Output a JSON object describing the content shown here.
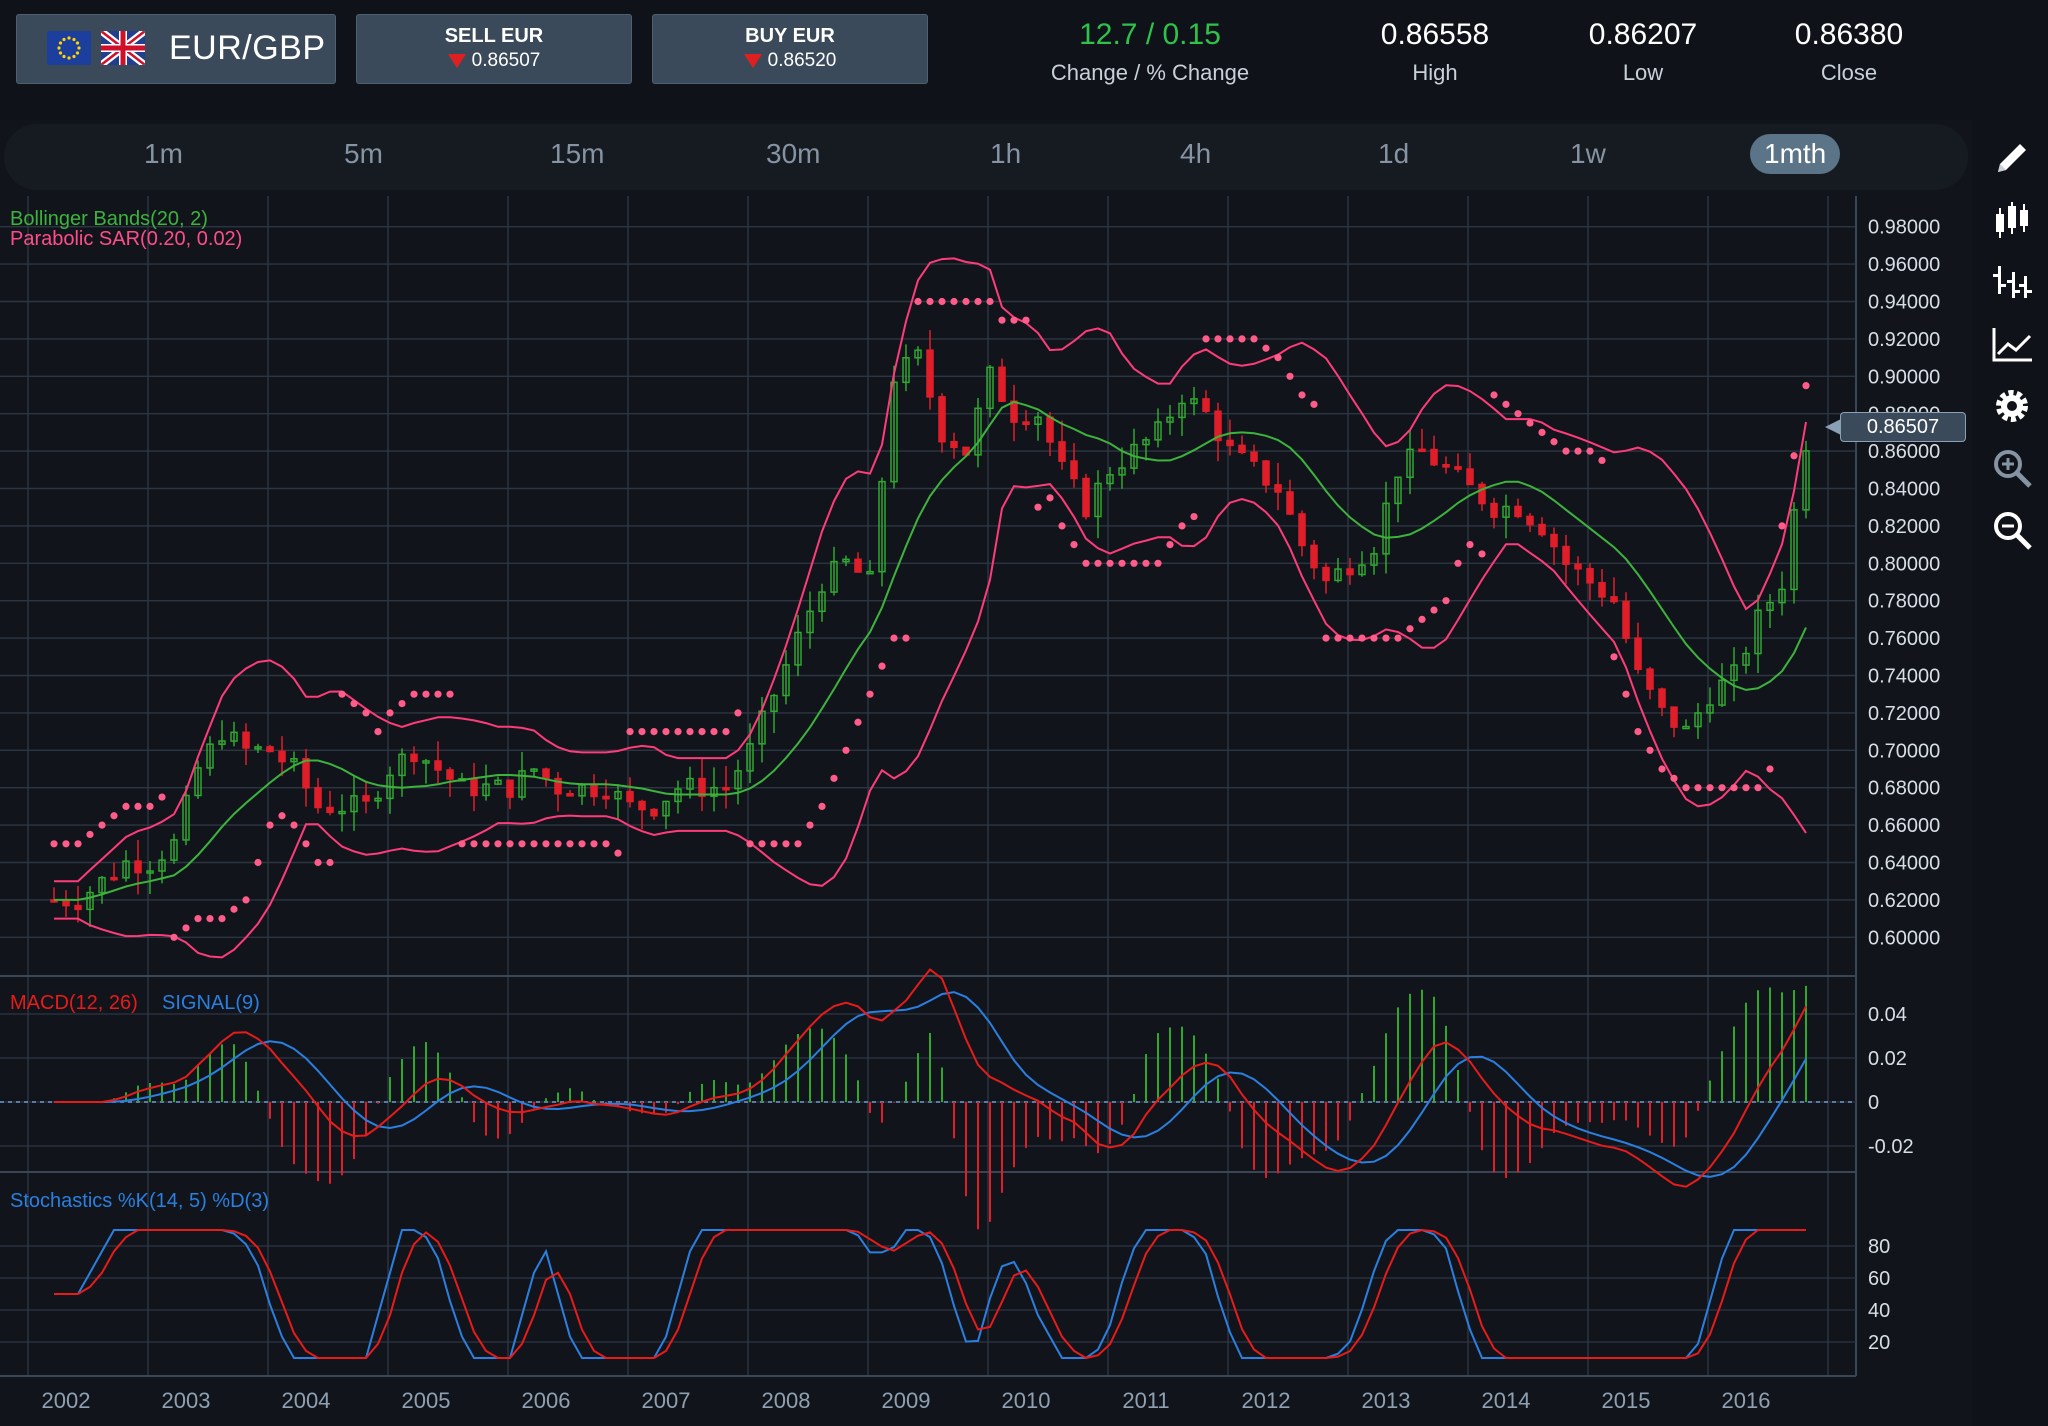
{
  "header": {
    "pair": "EUR/GBP",
    "sell": {
      "label": "SELL EUR",
      "price": "0.86507"
    },
    "buy": {
      "label": "BUY EUR",
      "price": "0.86520"
    },
    "change": {
      "value": "12.7 / 0.15",
      "label": "Change / % Change"
    },
    "high": {
      "value": "0.86558",
      "label": "High"
    },
    "low": {
      "value": "0.86207",
      "label": "Low"
    },
    "close": {
      "value": "0.86380",
      "label": "Close"
    }
  },
  "timeframes": [
    "1m",
    "5m",
    "15m",
    "30m",
    "1h",
    "4h",
    "1d",
    "1w",
    "1mth"
  ],
  "active_timeframe": "1mth",
  "tools": [
    "pencil-icon",
    "candlestick-icon",
    "bar-chart-icon",
    "line-chart-icon",
    "gear-icon",
    "zoom-in-icon",
    "zoom-out-icon"
  ],
  "colors": {
    "up": "#2fa82f",
    "down": "#e01e2a",
    "band": "#ff3b7a",
    "mid": "#3db33d",
    "sar": "#ff5c8a",
    "macd": "#e81b1b",
    "signal": "#2a7fe0",
    "bg": "#11151b",
    "grid": "#2c3643"
  },
  "current_price_tag": "0.86507",
  "chart_data": [
    {
      "type": "candlestick",
      "indicators": [
        "Bollinger Bands(20, 2)",
        "Parabolic SAR(0.20, 0.02)"
      ],
      "y_ticks": [
        "0.98000",
        "0.96000",
        "0.94000",
        "0.92000",
        "0.90000",
        "0.88000",
        "0.86000",
        "0.84000",
        "0.82000",
        "0.80000",
        "0.78000",
        "0.76000",
        "0.74000",
        "0.72000",
        "0.70000",
        "0.68000",
        "0.66000",
        "0.64000",
        "0.62000",
        "0.60000"
      ],
      "ylim": [
        0.59,
        0.99
      ],
      "x_ticks": [
        "2002",
        "2003",
        "2004",
        "2005",
        "2006",
        "2007",
        "2008",
        "2009",
        "2010",
        "2011",
        "2012",
        "2013",
        "2014",
        "2015",
        "2016"
      ],
      "close_series_approx": [
        [
          2001.9,
          0.62
        ],
        [
          2002.1,
          0.62
        ],
        [
          2002.3,
          0.63
        ],
        [
          2002.5,
          0.64
        ],
        [
          2002.7,
          0.64
        ],
        [
          2002.9,
          0.65
        ],
        [
          2003.1,
          0.69
        ],
        [
          2003.3,
          0.71
        ],
        [
          2003.5,
          0.7
        ],
        [
          2003.7,
          0.7
        ],
        [
          2003.9,
          0.69
        ],
        [
          2004.1,
          0.67
        ],
        [
          2004.3,
          0.67
        ],
        [
          2004.5,
          0.67
        ],
        [
          2004.7,
          0.69
        ],
        [
          2004.9,
          0.7
        ],
        [
          2005.1,
          0.69
        ],
        [
          2005.3,
          0.68
        ],
        [
          2005.5,
          0.68
        ],
        [
          2005.7,
          0.68
        ],
        [
          2005.9,
          0.69
        ],
        [
          2006.1,
          0.68
        ],
        [
          2006.3,
          0.68
        ],
        [
          2006.5,
          0.68
        ],
        [
          2006.7,
          0.67
        ],
        [
          2006.9,
          0.67
        ],
        [
          2007.1,
          0.68
        ],
        [
          2007.3,
          0.68
        ],
        [
          2007.5,
          0.68
        ],
        [
          2007.7,
          0.7
        ],
        [
          2007.9,
          0.73
        ],
        [
          2008.1,
          0.76
        ],
        [
          2008.3,
          0.79
        ],
        [
          2008.5,
          0.8
        ],
        [
          2008.7,
          0.79
        ],
        [
          2008.9,
          0.9
        ],
        [
          2009.1,
          0.91
        ],
        [
          2009.3,
          0.87
        ],
        [
          2009.5,
          0.86
        ],
        [
          2009.7,
          0.9
        ],
        [
          2009.9,
          0.88
        ],
        [
          2010.1,
          0.88
        ],
        [
          2010.3,
          0.85
        ],
        [
          2010.5,
          0.83
        ],
        [
          2010.7,
          0.85
        ],
        [
          2010.9,
          0.86
        ],
        [
          2011.1,
          0.87
        ],
        [
          2011.3,
          0.89
        ],
        [
          2011.5,
          0.88
        ],
        [
          2011.7,
          0.86
        ],
        [
          2011.9,
          0.85
        ],
        [
          2012.1,
          0.84
        ],
        [
          2012.3,
          0.81
        ],
        [
          2012.5,
          0.79
        ],
        [
          2012.7,
          0.8
        ],
        [
          2012.9,
          0.81
        ],
        [
          2013.1,
          0.85
        ],
        [
          2013.3,
          0.86
        ],
        [
          2013.5,
          0.85
        ],
        [
          2013.7,
          0.84
        ],
        [
          2013.9,
          0.83
        ],
        [
          2014.1,
          0.83
        ],
        [
          2014.3,
          0.82
        ],
        [
          2014.5,
          0.8
        ],
        [
          2014.7,
          0.79
        ],
        [
          2014.9,
          0.78
        ],
        [
          2015.1,
          0.74
        ],
        [
          2015.3,
          0.72
        ],
        [
          2015.5,
          0.71
        ],
        [
          2015.7,
          0.73
        ],
        [
          2015.9,
          0.74
        ],
        [
          2016.1,
          0.77
        ],
        [
          2016.3,
          0.79
        ],
        [
          2016.5,
          0.865
        ]
      ]
    },
    {
      "type": "line",
      "title": "MACD(12, 26)",
      "series": [
        {
          "name": "MACD(12, 26)"
        },
        {
          "name": "SIGNAL(9)"
        }
      ],
      "y_ticks": [
        "0.04",
        "0.02",
        "0",
        "-0.02"
      ]
    },
    {
      "type": "line",
      "title": "Stochastics %K(14, 5) %D(3)",
      "y_ticks": [
        "80",
        "60",
        "40",
        "20"
      ]
    }
  ]
}
